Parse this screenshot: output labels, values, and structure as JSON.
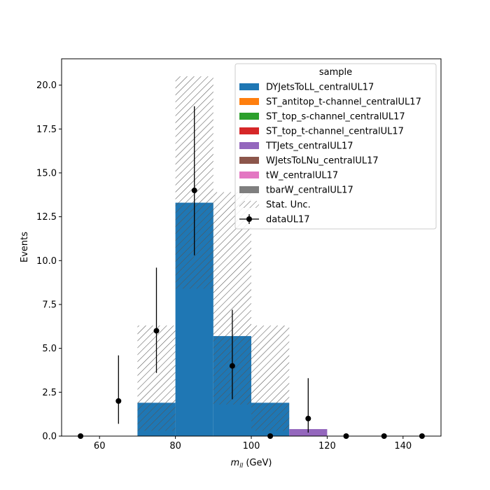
{
  "chart_data": {
    "type": "bar",
    "xlabel": "m_ll (GeV)",
    "ylabel": "Events",
    "xlim": [
      50,
      150
    ],
    "ylim": [
      0,
      21.5
    ],
    "x_ticks": [
      60,
      80,
      100,
      120,
      140
    ],
    "x_tick_labels": [
      "60",
      "80",
      "100",
      "120",
      "140"
    ],
    "y_ticks": [
      0,
      2.5,
      5,
      7.5,
      10,
      12.5,
      15,
      17.5,
      20
    ],
    "y_tick_labels": [
      "0.0",
      "2.5",
      "5.0",
      "7.5",
      "10.0",
      "12.5",
      "15.0",
      "17.5",
      "20.0"
    ],
    "bin_edges": [
      50,
      60,
      70,
      80,
      90,
      100,
      110,
      120,
      130,
      140,
      150
    ],
    "series": [
      {
        "name": "DYJetsToLL_centralUL17",
        "color": "#1f77b4",
        "values": [
          0,
          0,
          1.9,
          13.3,
          5.7,
          1.9,
          0,
          0,
          0,
          0
        ]
      },
      {
        "name": "ST_antitop_t-channel_centralUL17",
        "color": "#ff7f0e",
        "values": [
          0,
          0,
          0,
          0,
          0,
          0,
          0,
          0,
          0,
          0
        ]
      },
      {
        "name": "ST_top_s-channel_centralUL17",
        "color": "#2ca02c",
        "values": [
          0,
          0,
          0,
          0,
          0,
          0,
          0,
          0,
          0,
          0
        ]
      },
      {
        "name": "ST_top_t-channel_centralUL17",
        "color": "#d62728",
        "values": [
          0,
          0,
          0,
          0,
          0,
          0,
          0,
          0,
          0,
          0
        ]
      },
      {
        "name": "TTJets_centralUL17",
        "color": "#9467bd",
        "values": [
          0,
          0,
          0,
          0,
          0,
          0,
          0.4,
          0,
          0,
          0
        ]
      },
      {
        "name": "WJetsToLNu_centralUL17",
        "color": "#8c564b",
        "values": [
          0,
          0,
          0,
          0,
          0,
          0,
          0,
          0,
          0,
          0
        ]
      },
      {
        "name": "tW_centralUL17",
        "color": "#e377c2",
        "values": [
          0,
          0,
          0,
          0,
          0,
          0,
          0,
          0,
          0,
          0
        ]
      },
      {
        "name": "tbarW_centralUL17",
        "color": "#7f7f7f",
        "values": [
          0,
          0,
          0,
          0,
          0,
          0,
          0,
          0,
          0,
          0
        ]
      }
    ],
    "stat_unc": {
      "name": "Stat. Unc.",
      "bins": [
        {
          "bin": 2,
          "low": 0.3,
          "high": 6.3
        },
        {
          "bin": 3,
          "low": 8.4,
          "high": 20.5
        },
        {
          "bin": 4,
          "low": 1.8,
          "high": 13.9
        },
        {
          "bin": 5,
          "low": 0.3,
          "high": 6.3
        }
      ]
    },
    "data": {
      "name": "dataUL17",
      "x": [
        55,
        65,
        75,
        85,
        95,
        105,
        115,
        125,
        135,
        145
      ],
      "y": [
        0,
        2,
        6,
        14,
        4,
        0,
        1,
        0,
        0,
        0
      ],
      "err_low": [
        0,
        1.3,
        2.4,
        3.7,
        1.9,
        0,
        0.8,
        0,
        0,
        0
      ],
      "err_high": [
        0,
        2.6,
        3.6,
        4.8,
        3.2,
        0,
        2.3,
        0,
        0,
        0
      ]
    },
    "legend": {
      "title": "sample",
      "position": "top-right"
    },
    "grid": false
  }
}
